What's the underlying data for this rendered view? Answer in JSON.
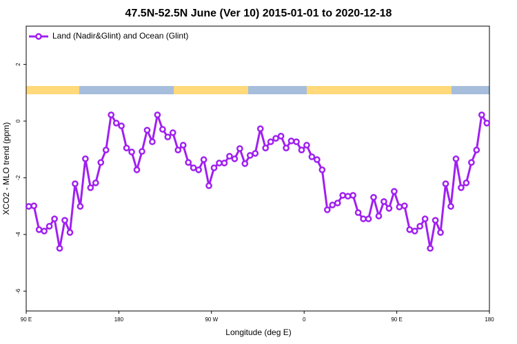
{
  "chart_data": {
    "type": "line",
    "title": "47.5N-52.5N June (Ver 10)   2015-01-01 to 2020-12-18",
    "x_label": "Longitude (deg E)",
    "y_label": "XCO2 - MLO trend (ppm)",
    "xlim": [
      90,
      540
    ],
    "xticks": [
      {
        "value": 90,
        "label": "90 E"
      },
      180,
      {
        "value": 270,
        "label": "90 W"
      },
      {
        "value": 360,
        "label": "0"
      },
      {
        "value": 450,
        "label": "90 E"
      },
      {
        "value": 540,
        "label": "180"
      }
    ],
    "ylim": [
      -6.7,
      3.35
    ],
    "yticks": [
      -6,
      -4,
      -2,
      0,
      2
    ],
    "legend_position": "top-left",
    "x": [
      92.5,
      97.5,
      102.5,
      107.5,
      112.5,
      117.5,
      122.5,
      127.5,
      132.5,
      137.5,
      142.5,
      147.5,
      152.5,
      157.5,
      162.5,
      167.5,
      172.5,
      177.5,
      182.5,
      187.5,
      192.5,
      197.5,
      202.5,
      207.5,
      212.5,
      217.5,
      222.5,
      227.5,
      232.5,
      237.5,
      242.5,
      247.5,
      252.5,
      257.5,
      262.5,
      267.5,
      272.5,
      277.5,
      282.5,
      287.5,
      292.5,
      297.5,
      302.5,
      307.5,
      312.5,
      317.5,
      322.5,
      327.5,
      332.5,
      337.5,
      342.5,
      347.5,
      352.5,
      357.5,
      362.5,
      367.5,
      372.5,
      377.5,
      382.5,
      387.5,
      392.5,
      397.5,
      402.5,
      407.5,
      412.5,
      417.5,
      422.5,
      427.5,
      432.5,
      437.5,
      442.5,
      447.5,
      452.5,
      457.5,
      462.5,
      467.5,
      472.5,
      477.5,
      482.5,
      487.5,
      492.5,
      497.5,
      502.5,
      507.5,
      512.5,
      517.5,
      522.5,
      527.5,
      532.5,
      537.5
    ],
    "series": [
      {
        "name": "Land (Nadir&Glint) and Ocean (Glint)",
        "color": "#A020F0",
        "values": [
          -3.01,
          -2.99,
          -3.83,
          -3.88,
          -3.71,
          -3.45,
          -4.49,
          -3.5,
          -3.93,
          -2.21,
          -3.01,
          -1.33,
          -2.35,
          -2.18,
          -1.46,
          -1.02,
          0.22,
          -0.07,
          -0.17,
          -0.95,
          -1.09,
          -1.72,
          -1.07,
          -0.32,
          -0.73,
          0.22,
          -0.29,
          -0.56,
          -0.41,
          -1.02,
          -0.85,
          -1.46,
          -1.65,
          -1.72,
          -1.36,
          -2.28,
          -1.65,
          -1.48,
          -1.48,
          -1.24,
          -1.33,
          -0.97,
          -1.5,
          -1.21,
          -1.14,
          -0.27,
          -0.95,
          -0.73,
          -0.61,
          -0.53,
          -0.95,
          -0.7,
          -0.73,
          -1.02,
          -0.85,
          -1.26,
          -1.36,
          -1.72,
          -3.13,
          -2.96,
          -2.89,
          -2.62,
          -2.65,
          -2.62,
          -3.23,
          -3.45,
          -3.45,
          -2.69,
          -3.35,
          -2.84,
          -3.08,
          -2.48,
          -3.03,
          -2.99,
          -3.83,
          -3.88,
          -3.71,
          -3.45,
          -4.49,
          -3.5,
          -3.93,
          -2.21,
          -3.01,
          -1.33,
          -2.35,
          -2.18,
          -1.46,
          -1.02,
          0.22,
          -0.07
        ]
      }
    ]
  }
}
